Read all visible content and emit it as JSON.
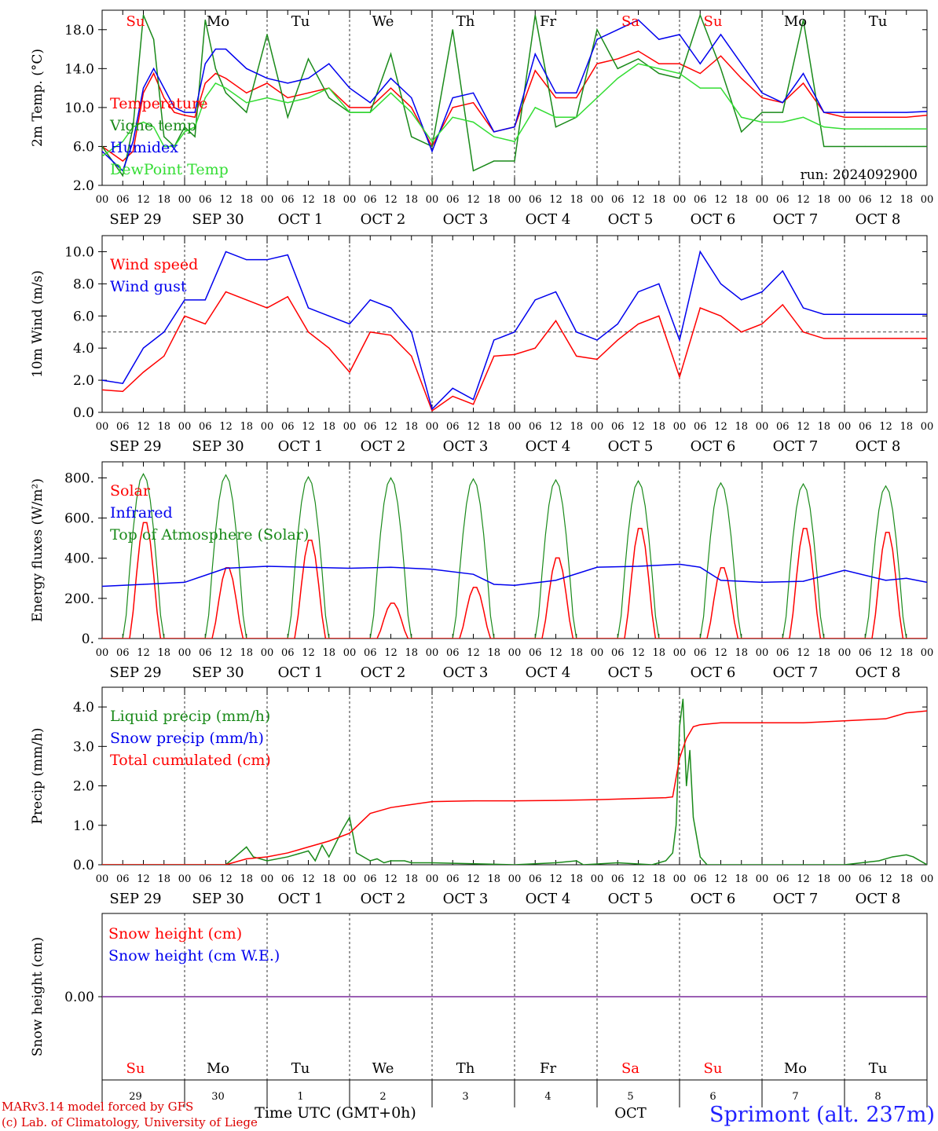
{
  "colors": {
    "red": "#ff0000",
    "green": "#1a8a1a",
    "blue": "#0000ee",
    "lime": "#33dd33",
    "purple": "#7a2a9a",
    "weekend": "#ff0000",
    "weekday": "#000000",
    "station": "#2222ff"
  },
  "days": [
    "Su",
    "Mo",
    "Tu",
    "We",
    "Th",
    "Fr",
    "Sa",
    "Su",
    "Mo",
    "Tu"
  ],
  "day_colors": [
    "weekend",
    "weekday",
    "weekday",
    "weekday",
    "weekday",
    "weekday",
    "weekend",
    "weekend",
    "weekday",
    "weekday"
  ],
  "date_labels": [
    "SEP 29",
    "SEP 30",
    "OCT  1",
    "OCT  2",
    "OCT  3",
    "OCT  4",
    "OCT  5",
    "OCT  6",
    "OCT  7",
    "OCT  8"
  ],
  "hour_labels": [
    "00",
    "06",
    "12",
    "18"
  ],
  "last_hour_label": "00",
  "bottom": {
    "day_numbers": [
      "29",
      "30",
      "1",
      "2",
      "3",
      "4",
      "5",
      "6",
      "7",
      "8"
    ],
    "month": "OCT",
    "axis_label": "Time UTC (GMT+0h)",
    "credit1": "MARv3.14 model forced by GFS",
    "credit2": "(c) Lab. of Climatology, University of Liege",
    "station": "Sprimont (alt. 237m)"
  },
  "chart_data": [
    {
      "id": "temperature",
      "type": "line",
      "ylabel": "2m Temp. (°C)",
      "ylim": [
        2,
        20
      ],
      "yticks": [
        2,
        6,
        10,
        14,
        18
      ],
      "ytick_labels": [
        "2.0",
        "6.0",
        "10.0",
        "14.0",
        "18.0"
      ],
      "annotation": "run: 2024092900",
      "legend": [
        "Temperature",
        "Vigne temp",
        "Humidex",
        "DewPoint Temp"
      ],
      "series": [
        {
          "name": "Temperature",
          "color": "red",
          "x": [
            0,
            6,
            9,
            12,
            15,
            18,
            21,
            24,
            27,
            30,
            33,
            36,
            42,
            48,
            54,
            60,
            66,
            72,
            78,
            84,
            90,
            96,
            102,
            108,
            114,
            120,
            126,
            132,
            138,
            144,
            150,
            156,
            162,
            168,
            174,
            180,
            186,
            192,
            198,
            204,
            210,
            216,
            222,
            228,
            234,
            240
          ],
          "y": [
            6.0,
            4.5,
            5.5,
            11.5,
            13.5,
            11.0,
            9.5,
            9.2,
            9.0,
            12.5,
            13.5,
            13.0,
            11.5,
            12.5,
            11.0,
            11.5,
            12.0,
            10.0,
            10.0,
            12.0,
            10.0,
            6.0,
            10.0,
            10.5,
            7.5,
            8.0,
            13.8,
            11.0,
            11.0,
            14.5,
            15.0,
            15.8,
            14.5,
            14.5,
            13.5,
            15.3,
            13.0,
            11.0,
            10.5,
            12.5,
            9.5,
            9.0,
            9.0,
            9.0,
            9.0,
            9.2
          ]
        },
        {
          "name": "Vigne temp",
          "color": "green",
          "x": [
            0,
            6,
            9,
            12,
            15,
            18,
            21,
            24,
            27,
            30,
            33,
            36,
            42,
            48,
            54,
            60,
            66,
            72,
            78,
            84,
            90,
            96,
            102,
            108,
            114,
            120,
            126,
            132,
            138,
            144,
            150,
            156,
            162,
            168,
            174,
            180,
            186,
            192,
            198,
            204,
            210,
            216,
            222,
            228,
            234,
            240
          ],
          "y": [
            6.0,
            3.0,
            8.0,
            19.5,
            17.0,
            7.0,
            6.0,
            8.0,
            7.0,
            19.0,
            14.0,
            11.5,
            9.5,
            17.5,
            9.0,
            15.0,
            11.0,
            9.5,
            9.5,
            15.5,
            7.0,
            6.0,
            18.0,
            3.5,
            4.5,
            4.5,
            19.5,
            8.0,
            9.0,
            18.0,
            14.0,
            15.0,
            13.5,
            13.0,
            19.5,
            14.0,
            7.5,
            9.5,
            9.5,
            19.0,
            6.0,
            6.0,
            6.0,
            6.0,
            6.0,
            6.0
          ]
        },
        {
          "name": "Humidex",
          "color": "blue",
          "x": [
            0,
            6,
            9,
            12,
            15,
            18,
            21,
            24,
            27,
            30,
            33,
            36,
            42,
            48,
            54,
            60,
            66,
            72,
            78,
            84,
            90,
            96,
            102,
            108,
            114,
            120,
            126,
            132,
            138,
            144,
            150,
            156,
            162,
            168,
            174,
            180,
            186,
            192,
            198,
            204,
            210,
            216,
            222,
            228,
            234,
            240
          ],
          "y": [
            5.5,
            3.5,
            6.5,
            12.0,
            14.0,
            12.0,
            10.0,
            9.5,
            9.5,
            14.5,
            16.0,
            16.0,
            14.0,
            13.0,
            12.5,
            13.0,
            14.5,
            12.0,
            10.5,
            13.0,
            11.0,
            5.5,
            11.0,
            11.5,
            7.5,
            8.0,
            15.5,
            11.5,
            11.5,
            17.0,
            18.0,
            19.0,
            17.0,
            17.5,
            14.5,
            17.5,
            14.5,
            11.5,
            10.5,
            13.5,
            9.5,
            9.5,
            9.5,
            9.5,
            9.5,
            9.6
          ]
        },
        {
          "name": "DewPoint Temp",
          "color": "lime",
          "x": [
            0,
            6,
            9,
            12,
            15,
            18,
            21,
            24,
            27,
            30,
            33,
            36,
            42,
            48,
            54,
            60,
            66,
            72,
            78,
            84,
            90,
            96,
            102,
            108,
            114,
            120,
            126,
            132,
            138,
            144,
            150,
            156,
            162,
            168,
            174,
            180,
            186,
            192,
            198,
            204,
            210,
            216,
            222,
            228,
            234,
            240
          ],
          "y": [
            5.0,
            6.5,
            8.0,
            8.5,
            8.0,
            6.0,
            6.0,
            7.5,
            8.0,
            11.0,
            12.5,
            12.0,
            10.5,
            11.0,
            10.5,
            11.0,
            12.0,
            9.5,
            9.5,
            11.5,
            9.5,
            6.5,
            9.0,
            8.5,
            7.0,
            6.5,
            10.0,
            9.0,
            9.0,
            11.0,
            13.0,
            14.5,
            14.0,
            13.5,
            12.0,
            12.0,
            9.0,
            8.5,
            8.5,
            9.0,
            8.0,
            7.8,
            7.8,
            7.8,
            7.8,
            7.8
          ]
        }
      ]
    },
    {
      "id": "wind",
      "type": "line",
      "ylabel": "10m Wind (m/s)",
      "ylim": [
        0,
        11
      ],
      "yticks": [
        0,
        2,
        4,
        6,
        8,
        10
      ],
      "ytick_labels": [
        "0.0",
        "2.0",
        "4.0",
        "6.0",
        "8.0",
        "10.0"
      ],
      "reference_line": 5,
      "legend": [
        "Wind speed",
        "Wind gust"
      ],
      "series": [
        {
          "name": "Wind speed",
          "color": "red",
          "x": [
            0,
            6,
            12,
            18,
            24,
            30,
            36,
            42,
            48,
            54,
            60,
            66,
            72,
            78,
            84,
            90,
            96,
            102,
            108,
            114,
            120,
            126,
            132,
            138,
            144,
            150,
            156,
            162,
            168,
            174,
            180,
            186,
            192,
            198,
            204,
            210,
            216,
            222,
            228,
            234,
            240
          ],
          "y": [
            1.4,
            1.3,
            2.5,
            3.5,
            6.0,
            5.5,
            7.5,
            7.0,
            6.5,
            7.2,
            5.0,
            4.0,
            2.5,
            5.0,
            4.8,
            3.5,
            0.1,
            1.0,
            0.5,
            3.5,
            3.6,
            4.0,
            5.7,
            3.5,
            3.3,
            4.5,
            5.5,
            6.0,
            2.2,
            6.5,
            6.0,
            5.0,
            5.5,
            6.7,
            5.0,
            4.6,
            4.6,
            4.6,
            4.6,
            4.6,
            4.6
          ]
        },
        {
          "name": "Wind gust",
          "color": "blue",
          "x": [
            0,
            6,
            12,
            18,
            24,
            30,
            36,
            42,
            48,
            54,
            60,
            66,
            72,
            78,
            84,
            90,
            96,
            102,
            108,
            114,
            120,
            126,
            132,
            138,
            144,
            150,
            156,
            162,
            168,
            174,
            180,
            186,
            192,
            198,
            204,
            210,
            216,
            222,
            228,
            234,
            240
          ],
          "y": [
            2.0,
            1.8,
            4.0,
            5.0,
            7.0,
            7.0,
            10.0,
            9.5,
            9.5,
            9.8,
            6.5,
            6.0,
            5.5,
            7.0,
            6.5,
            5.0,
            0.2,
            1.5,
            0.8,
            4.5,
            5.0,
            7.0,
            7.5,
            5.0,
            4.5,
            5.5,
            7.5,
            8.0,
            4.5,
            10.0,
            8.0,
            7.0,
            7.5,
            8.8,
            6.5,
            6.1,
            6.1,
            6.1,
            6.1,
            6.1,
            6.1
          ]
        }
      ]
    },
    {
      "id": "energy",
      "type": "line",
      "ylabel": "Energy fluxes (W/m²)",
      "ylim": [
        0,
        880
      ],
      "yticks": [
        0,
        200,
        400,
        600,
        800
      ],
      "ytick_labels": [
        "0.",
        "200.",
        "400.",
        "600.",
        "800."
      ],
      "legend": [
        "Solar",
        "Infrared",
        "Top of Atmosphere (Solar)"
      ],
      "toa_peaks": [
        820,
        815,
        805,
        800,
        795,
        790,
        785,
        775,
        770,
        760
      ],
      "solar_peaks": [
        590,
        360,
        500,
        180,
        260,
        410,
        560,
        360,
        560,
        540
      ],
      "series": [
        {
          "name": "Infrared",
          "color": "blue",
          "x": [
            0,
            12,
            24,
            36,
            48,
            60,
            72,
            84,
            96,
            108,
            114,
            120,
            132,
            144,
            156,
            168,
            174,
            180,
            192,
            204,
            216,
            228,
            234,
            240
          ],
          "y": [
            260,
            270,
            280,
            350,
            360,
            355,
            350,
            355,
            345,
            320,
            270,
            265,
            290,
            355,
            360,
            370,
            355,
            290,
            280,
            285,
            340,
            290,
            300,
            280
          ]
        }
      ]
    },
    {
      "id": "precip",
      "type": "line",
      "ylabel": "Precip (mm/h)",
      "ylim": [
        0,
        4.5
      ],
      "yticks": [
        0,
        1,
        2,
        3,
        4
      ],
      "ytick_labels": [
        "0.0",
        "1.0",
        "2.0",
        "3.0",
        "4.0"
      ],
      "legend": [
        "Liquid precip (mm/h)",
        "Snow precip (mm/h)",
        "Total cumulated (cm)"
      ],
      "series": [
        {
          "name": "Liquid precip (mm/h)",
          "color": "green",
          "x": [
            0,
            36,
            40,
            42,
            44,
            48,
            54,
            60,
            62,
            64,
            66,
            70,
            72,
            74,
            78,
            80,
            82,
            84,
            88,
            90,
            96,
            120,
            132,
            138,
            140,
            150,
            160,
            164,
            166,
            167,
            168,
            169,
            170,
            171,
            172,
            174,
            176,
            180,
            192,
            204,
            216,
            226,
            230,
            234,
            236,
            240
          ],
          "y": [
            0,
            0,
            0.3,
            0.45,
            0.2,
            0.1,
            0.2,
            0.35,
            0.1,
            0.5,
            0.2,
            0.9,
            1.2,
            0.3,
            0.1,
            0.15,
            0.05,
            0.1,
            0.1,
            0.05,
            0.05,
            0,
            0.05,
            0.1,
            0,
            0.05,
            0,
            0.1,
            0.3,
            1.0,
            3.5,
            4.2,
            2.0,
            2.9,
            1.2,
            0.2,
            0,
            0,
            0,
            0,
            0,
            0.1,
            0.2,
            0.25,
            0.2,
            0
          ]
        },
        {
          "name": "Total cumulated (cm)",
          "color": "red",
          "x": [
            0,
            36,
            42,
            48,
            54,
            60,
            66,
            72,
            78,
            84,
            96,
            108,
            120,
            132,
            144,
            156,
            164,
            166,
            168,
            170,
            172,
            174,
            180,
            192,
            204,
            216,
            228,
            234,
            240
          ],
          "y": [
            0,
            0,
            0.15,
            0.2,
            0.3,
            0.45,
            0.6,
            0.8,
            1.3,
            1.45,
            1.6,
            1.62,
            1.62,
            1.63,
            1.65,
            1.68,
            1.7,
            1.72,
            2.7,
            3.2,
            3.5,
            3.55,
            3.6,
            3.6,
            3.6,
            3.65,
            3.7,
            3.85,
            3.9
          ]
        }
      ]
    },
    {
      "id": "snow",
      "type": "line",
      "ylabel": "Snow height (cm)",
      "ylim": [
        -1,
        1
      ],
      "yticks": [
        0
      ],
      "ytick_labels": [
        "0.00"
      ],
      "legend": [
        "Snow height (cm)",
        "Snow height (cm W.E.)"
      ],
      "series": [
        {
          "name": "Snow height (cm)",
          "color": "purple",
          "x": [
            0,
            240
          ],
          "y": [
            0,
            0
          ]
        }
      ]
    }
  ]
}
